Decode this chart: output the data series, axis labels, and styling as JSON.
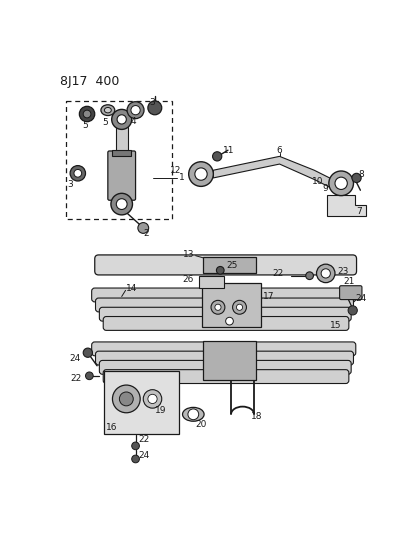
{
  "title": "8J17  400",
  "bg_color": "#ffffff",
  "line_color": "#1a1a1a",
  "title_fontsize": 9,
  "label_fontsize": 6.5,
  "fig_width": 4.11,
  "fig_height": 5.33,
  "dpi": 100
}
